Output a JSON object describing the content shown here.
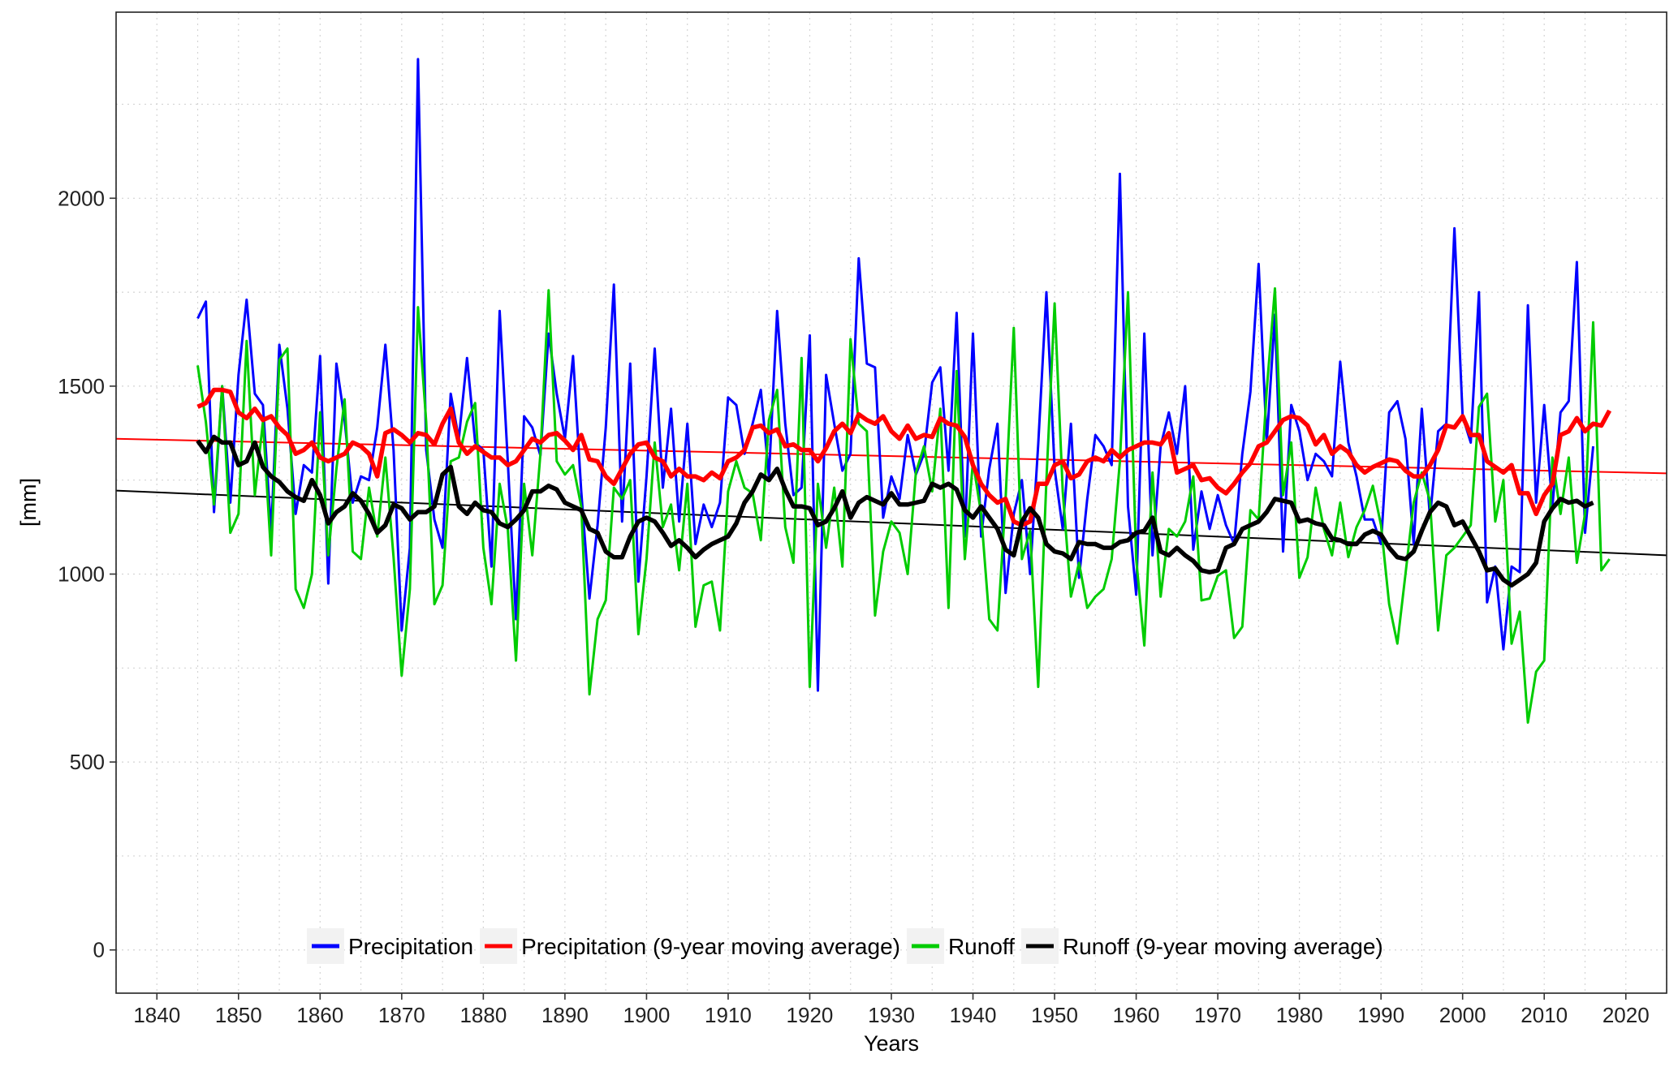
{
  "chart_data": {
    "type": "line",
    "title": "",
    "xlabel": "Years",
    "ylabel": "[mm]",
    "xlim": [
      1835,
      2025
    ],
    "ylim": [
      -115,
      2495
    ],
    "x_ticks": [
      1840,
      1850,
      1860,
      1870,
      1880,
      1890,
      1900,
      1910,
      1920,
      1930,
      1940,
      1950,
      1960,
      1970,
      1980,
      1990,
      2000,
      2010,
      2020
    ],
    "x_tick_labels": [
      "1840",
      "1850",
      "1860",
      "1870",
      "1880",
      "1890",
      "1900",
      "1910",
      "1920",
      "1930",
      "1940",
      "1950",
      "1960",
      "1970",
      "1980",
      "1990",
      "2000",
      "2010",
      "2020"
    ],
    "y_ticks": [
      0,
      500,
      1000,
      1500,
      2000
    ],
    "y_tick_labels": [
      "0",
      "500",
      "1000",
      "1500",
      "2000"
    ],
    "grid": "dotted",
    "legend_position": "bottom",
    "x_start_year": 1845,
    "series": [
      {
        "name": "Precipitation",
        "color": "#0000ff",
        "values": [
          1680,
          1725,
          1165,
          1500,
          1190,
          1530,
          1730,
          1480,
          1450,
          1110,
          1610,
          1440,
          1160,
          1290,
          1270,
          1580,
          975,
          1560,
          1410,
          1190,
          1260,
          1250,
          1390,
          1610,
          1330,
          850,
          1070,
          2370,
          1330,
          1145,
          1070,
          1480,
          1360,
          1575,
          1350,
          1330,
          1020,
          1700,
          1300,
          880,
          1420,
          1390,
          1315,
          1640,
          1480,
          1360,
          1580,
          1220,
          935,
          1130,
          1390,
          1770,
          1140,
          1560,
          980,
          1260,
          1600,
          1230,
          1440,
          1140,
          1400,
          1080,
          1185,
          1125,
          1190,
          1470,
          1450,
          1320,
          1400,
          1490,
          1260,
          1700,
          1400,
          1210,
          1230,
          1635,
          690,
          1530,
          1400,
          1275,
          1320,
          1840,
          1560,
          1550,
          1150,
          1260,
          1200,
          1370,
          1265,
          1320,
          1510,
          1550,
          1275,
          1695,
          1100,
          1640,
          1100,
          1280,
          1400,
          950,
          1160,
          1250,
          1000,
          1345,
          1750,
          1280,
          1120,
          1400,
          990,
          1200,
          1370,
          1340,
          1290,
          2065,
          1180,
          945,
          1640,
          1050,
          1340,
          1430,
          1320,
          1500,
          1065,
          1220,
          1120,
          1210,
          1130,
          1080,
          1320,
          1485,
          1825,
          1350,
          1690,
          1060,
          1450,
          1380,
          1250,
          1320,
          1300,
          1260,
          1565,
          1350,
          1260,
          1145,
          1145,
          1080,
          1430,
          1460,
          1360,
          1080,
          1440,
          1150,
          1380,
          1400,
          1920,
          1420,
          1350,
          1750,
          925,
          1020,
          800,
          1020,
          1005,
          1715,
          1190,
          1450,
          1180,
          1430,
          1460,
          1830,
          1110,
          1340
        ]
      },
      {
        "name": "Precipitation (9-year moving average)",
        "color": "#ff0000",
        "values": [
          1445,
          1455,
          1490,
          1490,
          1485,
          1430,
          1415,
          1440,
          1410,
          1420,
          1390,
          1370,
          1320,
          1330,
          1350,
          1310,
          1300,
          1310,
          1320,
          1350,
          1340,
          1320,
          1260,
          1375,
          1385,
          1370,
          1350,
          1375,
          1370,
          1345,
          1400,
          1440,
          1350,
          1320,
          1340,
          1325,
          1310,
          1310,
          1290,
          1300,
          1330,
          1360,
          1350,
          1370,
          1375,
          1355,
          1330,
          1370,
          1305,
          1300,
          1260,
          1240,
          1280,
          1320,
          1345,
          1350,
          1310,
          1300,
          1260,
          1280,
          1260,
          1260,
          1250,
          1270,
          1255,
          1300,
          1310,
          1330,
          1390,
          1395,
          1375,
          1385,
          1340,
          1345,
          1330,
          1330,
          1300,
          1335,
          1380,
          1400,
          1375,
          1425,
          1410,
          1400,
          1420,
          1380,
          1360,
          1395,
          1360,
          1370,
          1365,
          1415,
          1400,
          1395,
          1365,
          1290,
          1240,
          1210,
          1190,
          1200,
          1140,
          1130,
          1140,
          1240,
          1240,
          1290,
          1300,
          1255,
          1265,
          1300,
          1310,
          1300,
          1330,
          1310,
          1330,
          1340,
          1350,
          1350,
          1345,
          1375,
          1270,
          1280,
          1290,
          1250,
          1255,
          1230,
          1215,
          1240,
          1270,
          1295,
          1340,
          1350,
          1380,
          1410,
          1420,
          1415,
          1395,
          1345,
          1370,
          1320,
          1340,
          1325,
          1290,
          1270,
          1285,
          1295,
          1305,
          1300,
          1275,
          1260,
          1260,
          1290,
          1330,
          1395,
          1390,
          1420,
          1370,
          1370,
          1300,
          1285,
          1270,
          1290,
          1215,
          1215,
          1160,
          1210,
          1240,
          1370,
          1380,
          1415,
          1380,
          1400,
          1395,
          1435
        ]
      },
      {
        "name": "Runoff",
        "color": "#00cc00",
        "values": [
          1555,
          1405,
          1185,
          1500,
          1110,
          1160,
          1620,
          1210,
          1405,
          1050,
          1570,
          1600,
          960,
          910,
          1000,
          1430,
          1050,
          1280,
          1465,
          1060,
          1040,
          1230,
          1100,
          1310,
          1045,
          730,
          960,
          1710,
          1405,
          920,
          970,
          1300,
          1310,
          1405,
          1455,
          1070,
          920,
          1240,
          1120,
          770,
          1240,
          1050,
          1320,
          1755,
          1300,
          1265,
          1290,
          1180,
          680,
          880,
          930,
          1230,
          1200,
          1250,
          840,
          1040,
          1350,
          1125,
          1185,
          1010,
          1240,
          860,
          970,
          980,
          850,
          1220,
          1300,
          1230,
          1215,
          1090,
          1410,
          1490,
          1125,
          1030,
          1575,
          700,
          1240,
          1070,
          1230,
          1020,
          1625,
          1400,
          1380,
          890,
          1060,
          1140,
          1110,
          1000,
          1270,
          1340,
          1220,
          1440,
          910,
          1540,
          1040,
          1300,
          1160,
          880,
          850,
          1200,
          1655,
          1040,
          1115,
          700,
          1250,
          1720,
          1220,
          940,
          1030,
          910,
          940,
          960,
          1040,
          1300,
          1750,
          1040,
          810,
          1270,
          940,
          1120,
          1100,
          1140,
          1260,
          930,
          935,
          995,
          1010,
          830,
          860,
          1170,
          1145,
          1490,
          1760,
          1210,
          1350,
          990,
          1045,
          1230,
          1120,
          1050,
          1190,
          1045,
          1125,
          1170,
          1235,
          1130,
          920,
          815,
          1000,
          1190,
          1270,
          1195,
          850,
          1050,
          1070,
          1100,
          1130,
          1445,
          1480,
          1140,
          1250,
          815,
          900,
          605,
          740,
          770,
          1310,
          1160,
          1310,
          1030,
          1160,
          1670,
          1010,
          1040
        ]
      },
      {
        "name": "Runoff (9-year moving average)",
        "color": "#000000",
        "values": [
          1355,
          1325,
          1365,
          1350,
          1350,
          1290,
          1300,
          1350,
          1285,
          1260,
          1245,
          1220,
          1205,
          1195,
          1250,
          1210,
          1135,
          1165,
          1180,
          1215,
          1195,
          1160,
          1110,
          1130,
          1185,
          1175,
          1145,
          1165,
          1165,
          1180,
          1265,
          1285,
          1180,
          1160,
          1190,
          1170,
          1165,
          1135,
          1125,
          1145,
          1170,
          1220,
          1220,
          1235,
          1225,
          1190,
          1180,
          1170,
          1120,
          1110,
          1060,
          1045,
          1045,
          1100,
          1140,
          1150,
          1140,
          1110,
          1075,
          1090,
          1070,
          1045,
          1065,
          1080,
          1090,
          1100,
          1135,
          1190,
          1220,
          1265,
          1250,
          1280,
          1225,
          1180,
          1180,
          1175,
          1130,
          1140,
          1175,
          1220,
          1150,
          1190,
          1205,
          1195,
          1185,
          1215,
          1185,
          1185,
          1190,
          1195,
          1240,
          1230,
          1240,
          1225,
          1170,
          1150,
          1180,
          1150,
          1120,
          1065,
          1050,
          1140,
          1175,
          1150,
          1080,
          1060,
          1055,
          1040,
          1085,
          1080,
          1080,
          1070,
          1070,
          1085,
          1090,
          1110,
          1115,
          1150,
          1060,
          1050,
          1070,
          1050,
          1035,
          1010,
          1005,
          1010,
          1070,
          1080,
          1120,
          1130,
          1140,
          1165,
          1200,
          1195,
          1190,
          1140,
          1145,
          1135,
          1130,
          1095,
          1090,
          1080,
          1080,
          1105,
          1115,
          1105,
          1070,
          1045,
          1040,
          1060,
          1115,
          1165,
          1190,
          1180,
          1130,
          1140,
          1100,
          1060,
          1010,
          1015,
          985,
          970,
          985,
          1000,
          1030,
          1140,
          1175,
          1200,
          1190,
          1195,
          1180,
          1190
        ]
      },
      {
        "name": "",
        "role": "trend (Precipitation)",
        "color": "#ff0000",
        "x": [
          1835,
          2025
        ],
        "values": [
          1360,
          1268
        ]
      },
      {
        "name": "",
        "role": "trend (Runoff)",
        "color": "#000000",
        "x": [
          1835,
          2025
        ],
        "values": [
          1222,
          1050
        ]
      }
    ]
  }
}
